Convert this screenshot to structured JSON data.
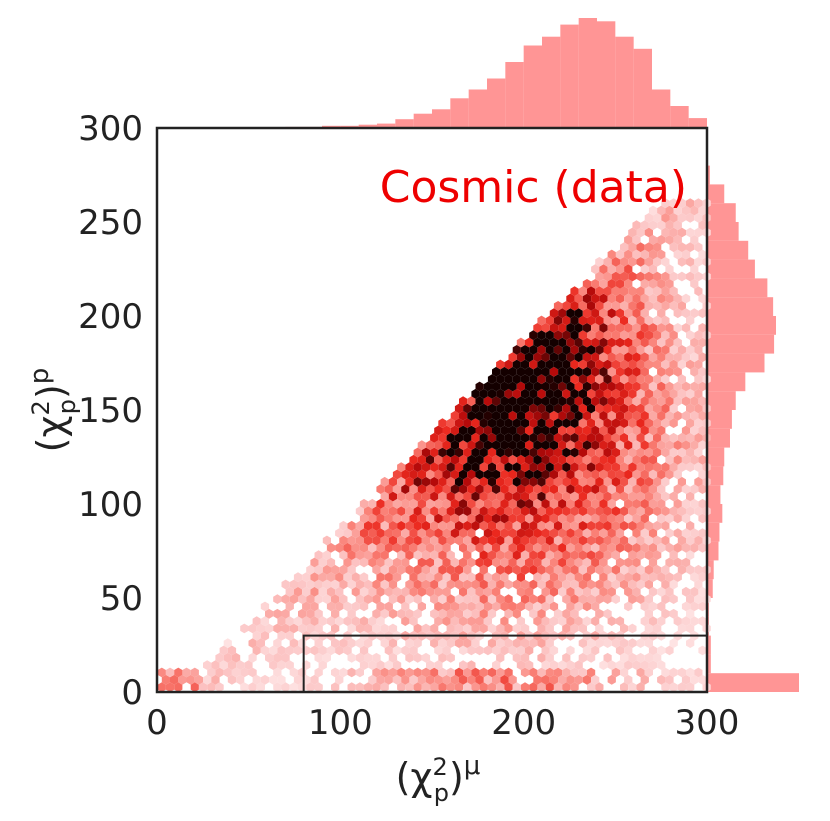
{
  "chart_data": {
    "type": "heatmap",
    "subtype": "hexbin-joint-plot",
    "annotation": "Cosmic (data)",
    "xlabel": "(χ²p)μ",
    "xlabel_parts": {
      "base": "(χ",
      "sup": "2",
      "sub": "p",
      "close": ")",
      "outer_sup": "μ"
    },
    "ylabel": "(χ²p)p",
    "ylabel_parts": {
      "base": "(χ",
      "sup": "2",
      "sub": "p",
      "close": ")",
      "outer_sup": "p"
    },
    "xlim": [
      0,
      300
    ],
    "ylim": [
      0,
      300
    ],
    "xticks": [
      0,
      100,
      200,
      300
    ],
    "yticks": [
      0,
      50,
      100,
      150,
      200,
      250,
      300
    ],
    "grid": false,
    "colormap": "Reds",
    "colors": {
      "hist": "#ff8a8a",
      "annotation": "#ee0000",
      "axes": "#222222"
    },
    "selection_box": {
      "x": [
        80,
        300
      ],
      "y": [
        0,
        30
      ]
    },
    "density_peak": {
      "x": 190,
      "y": 175
    },
    "marginal_x": {
      "bin_edges_start": 0,
      "bin_width": 10,
      "counts": [
        0.5,
        0.5,
        0.5,
        0.5,
        0.5,
        0.5,
        0.5,
        1,
        1,
        2,
        2,
        3,
        4,
        8,
        13,
        17,
        27,
        35,
        45,
        60,
        75,
        83,
        94,
        100,
        97,
        83,
        72,
        35,
        20,
        9
      ]
    },
    "marginal_y": {
      "bin_edges_start": 0,
      "bin_width": 10,
      "counts": [
        96,
        4,
        4,
        2,
        2,
        6,
        7,
        12,
        13,
        16,
        14,
        17,
        18,
        24,
        26,
        30,
        40,
        60,
        70,
        72,
        69,
        63,
        50,
        43,
        33,
        30,
        18,
        3,
        1,
        0.5
      ]
    }
  }
}
